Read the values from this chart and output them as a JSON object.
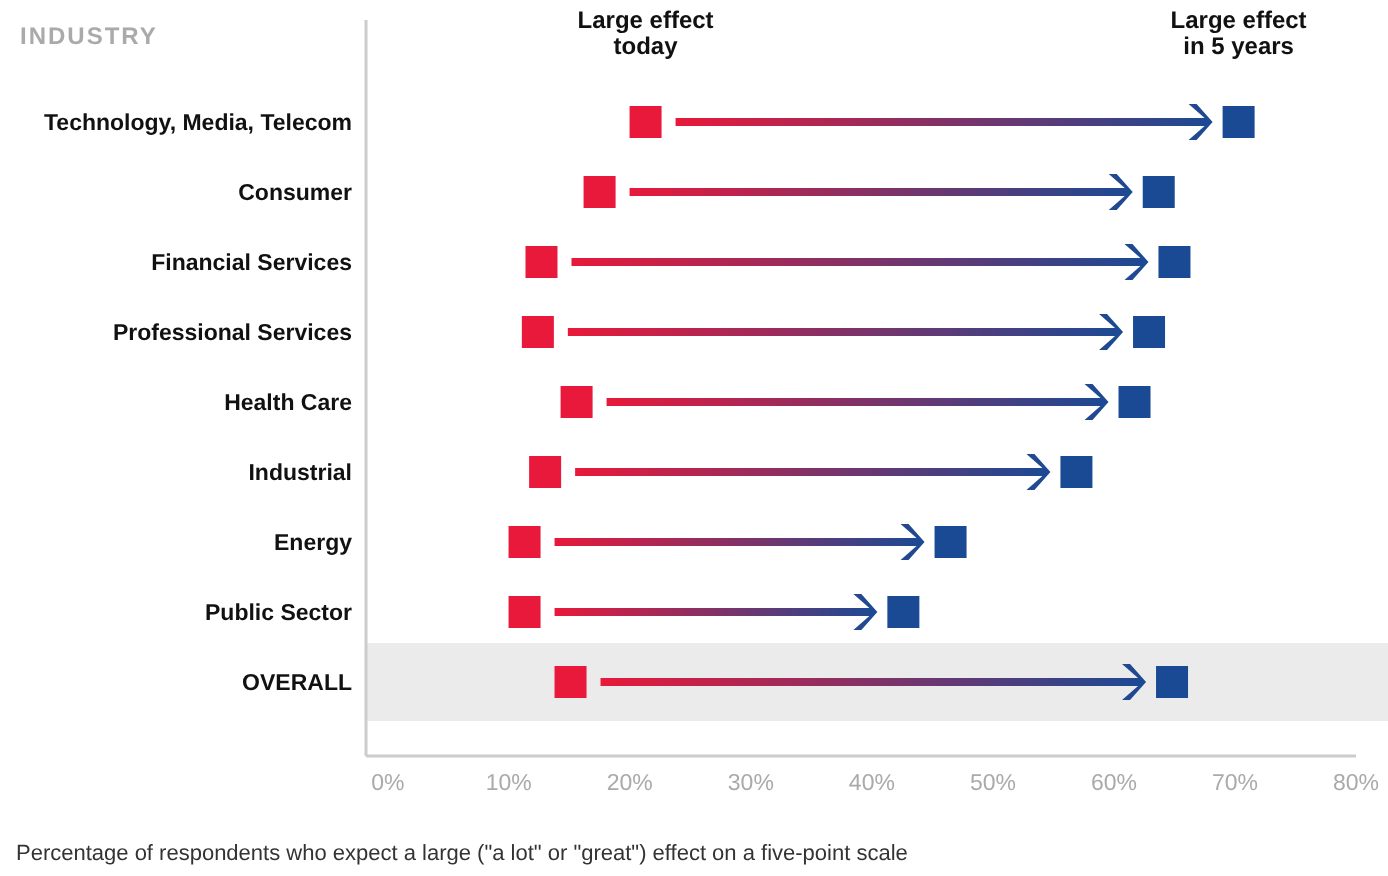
{
  "chart_data": {
    "type": "scatter",
    "orientation": "horizontal",
    "ylabel": "INDUSTRY",
    "categories": [
      "Technology, Media, Telecom",
      "Consumer",
      "Financial Services",
      "Professional Services",
      "Health Care",
      "Industrial",
      "Energy",
      "Public Sector",
      "OVERALL"
    ],
    "series": [
      {
        "name": "Large effect today",
        "color": "#e8193a",
        "values": [
          21.3,
          17.5,
          12.7,
          12.4,
          15.6,
          13,
          11.3,
          11.3,
          15.1
        ]
      },
      {
        "name": "Large effect in 5 years",
        "color": "#1a4a94",
        "values": [
          70.3,
          63.7,
          65,
          62.9,
          61.7,
          56.9,
          46.5,
          42.6,
          64.8
        ]
      }
    ],
    "xlim": [
      -1.8,
      80
    ],
    "xticks": [
      {
        "value": 0,
        "label": "0%"
      },
      {
        "value": 10,
        "label": "10%"
      },
      {
        "value": 20,
        "label": "20%"
      },
      {
        "value": 30,
        "label": "30%"
      },
      {
        "value": 40,
        "label": "40%"
      },
      {
        "value": 50,
        "label": "50%"
      },
      {
        "value": 60,
        "label": "60%"
      },
      {
        "value": 70,
        "label": "70%"
      },
      {
        "value": 80,
        "label": "80%"
      }
    ],
    "bands": [
      {
        "axis": "y",
        "from": "OVERALL",
        "to": "OVERALL",
        "color": "#ebebeb"
      }
    ],
    "marker": "square",
    "legend": "top",
    "grid": false,
    "annotations": [
      "Percentage of respondents who expect a large (\"a lot\" or \"great\") effect on a five-point scale"
    ]
  }
}
